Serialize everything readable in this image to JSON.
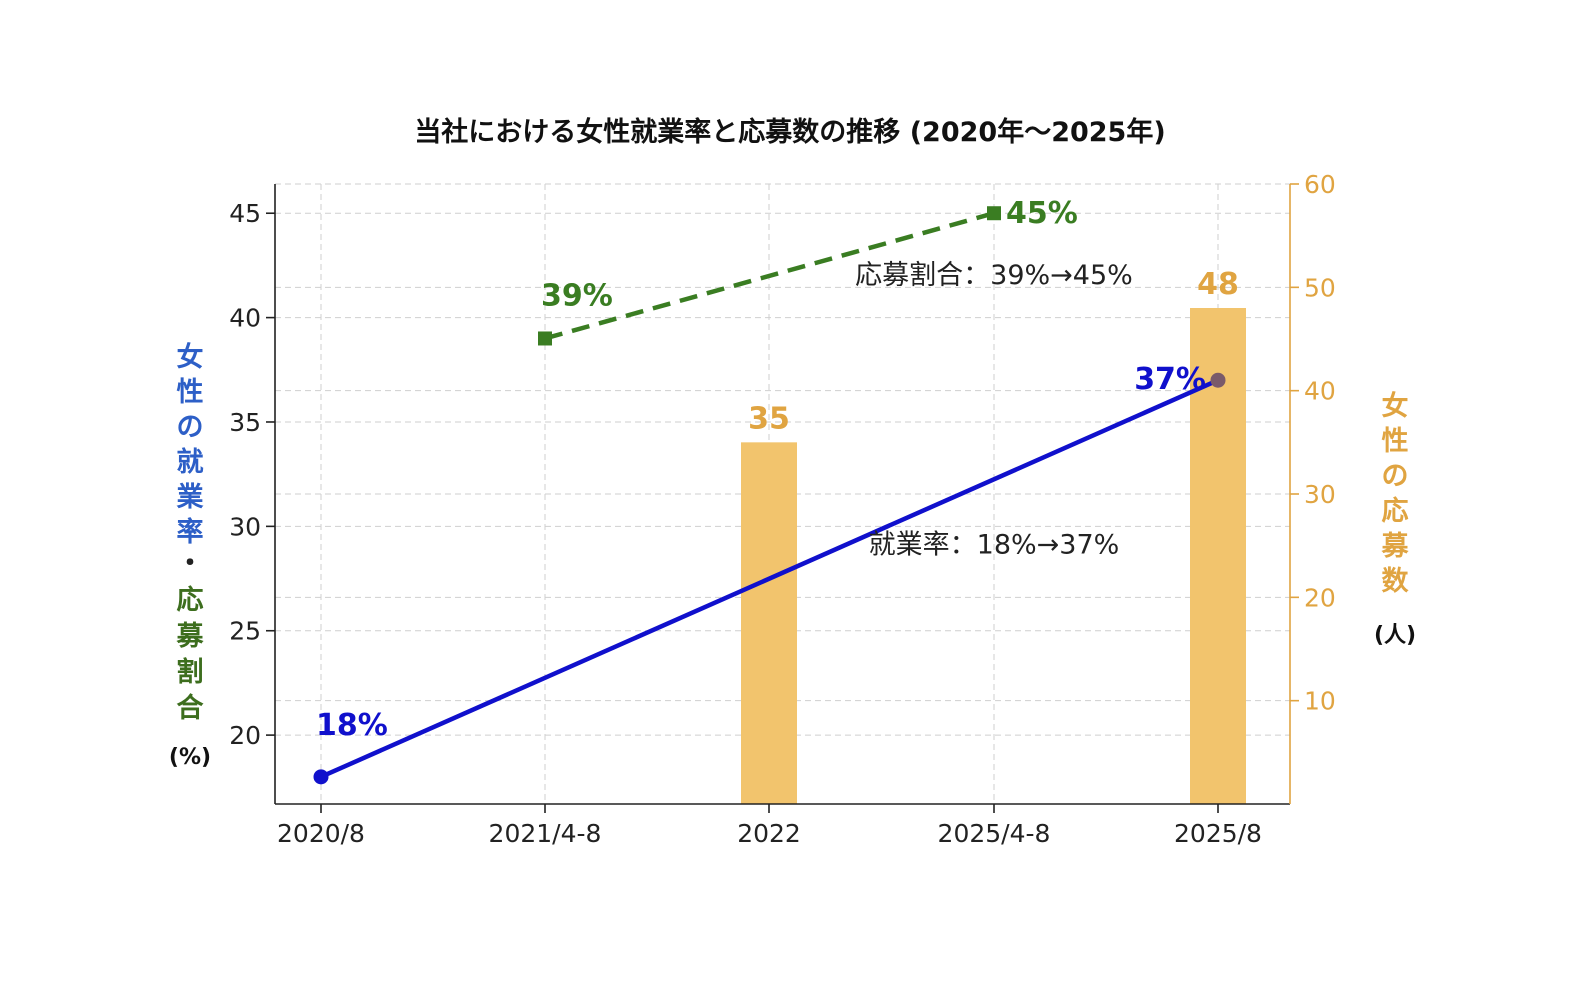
{
  "chart_data": {
    "type": "bar+line",
    "title": "当社における女性就業率と応募数の推移 (2020年〜2025年)",
    "categories": [
      "2020/8",
      "2021/4-8",
      "2022",
      "2025/4-8",
      "2025/8"
    ],
    "left_axis": {
      "label_part1": [
        "女",
        "性",
        "の",
        "就",
        "業",
        "率"
      ],
      "label_sep": "・",
      "label_part2": [
        "応",
        "募",
        "割",
        "合"
      ],
      "unit": "(%)",
      "ticks": [
        20,
        25,
        30,
        35,
        40,
        45
      ],
      "ylim": [
        16.7,
        46.4
      ]
    },
    "right_axis": {
      "label_chars": [
        "女",
        "性",
        "の",
        "応",
        "募",
        "数"
      ],
      "unit": "(人)",
      "ticks": [
        10,
        20,
        30,
        40,
        50,
        60
      ],
      "ylim": [
        0,
        60
      ]
    },
    "series": [
      {
        "kind": "line",
        "axis": "left",
        "color": "#1010cc",
        "points": [
          {
            "category": "2020/8",
            "value": 18,
            "label": "18%"
          },
          {
            "category": "2025/8",
            "value": 37,
            "label": "37%"
          }
        ]
      },
      {
        "kind": "dashed-line",
        "axis": "left",
        "color": "#3a7d22",
        "points": [
          {
            "category": "2021/4-8",
            "value": 39,
            "label": "39%"
          },
          {
            "category": "2025/4-8",
            "value": 45,
            "label": "45%"
          }
        ]
      },
      {
        "kind": "bar",
        "axis": "right",
        "color": "#f2c46d",
        "label_color": "#e0a441",
        "points": [
          {
            "category": "2022",
            "value": 35,
            "label": "35"
          },
          {
            "category": "2025/8",
            "value": 48,
            "label": "48"
          }
        ]
      }
    ],
    "annotations": [
      {
        "text": "応募割合：39%→45%",
        "x_category": "2025/4-8",
        "y_value": 41.6
      },
      {
        "text": "就業率：18%→37%",
        "x_category": "2025/4-8",
        "y_value": 28.7
      }
    ],
    "grid": true,
    "colors": {
      "left_label_blue": "#2d5fc7",
      "left_label_green": "#3d6e1e",
      "right_axis": "#e0a441"
    }
  }
}
